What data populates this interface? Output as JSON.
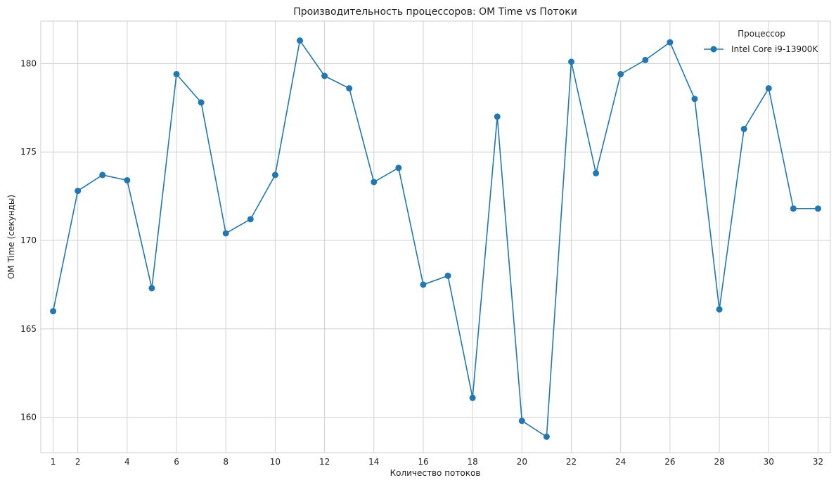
{
  "chart_data": {
    "type": "line",
    "title": "Производительность процессоров: OM Time vs Потоки",
    "xlabel": "Количество потоков",
    "ylabel": "OM Time (секунды)",
    "xlim": [
      0.5,
      32.5
    ],
    "ylim": [
      158.0,
      182.4
    ],
    "x_ticks": [
      1,
      2,
      4,
      6,
      8,
      10,
      12,
      14,
      16,
      18,
      20,
      22,
      24,
      26,
      28,
      30,
      32
    ],
    "y_ticks": [
      160,
      165,
      170,
      175,
      180
    ],
    "grid": true,
    "legend": {
      "title": "Процессор",
      "placement": "top-right"
    },
    "series": [
      {
        "name": "Intel Core i9-13900K",
        "color": "#1f77b4",
        "marker": "circle",
        "x": [
          1,
          2,
          3,
          4,
          5,
          6,
          7,
          8,
          9,
          10,
          11,
          12,
          13,
          14,
          15,
          16,
          17,
          18,
          19,
          20,
          21,
          22,
          23,
          24,
          25,
          26,
          27,
          28,
          29,
          30,
          31,
          32
        ],
        "y": [
          166.0,
          172.8,
          173.7,
          173.4,
          167.3,
          179.4,
          177.8,
          170.4,
          171.2,
          173.7,
          181.3,
          179.3,
          178.6,
          173.3,
          174.1,
          167.5,
          168.0,
          161.1,
          177.0,
          159.8,
          158.9,
          180.1,
          173.8,
          179.4,
          180.2,
          181.2,
          178.0,
          166.1,
          176.3,
          178.6,
          171.8,
          171.8
        ]
      }
    ]
  }
}
